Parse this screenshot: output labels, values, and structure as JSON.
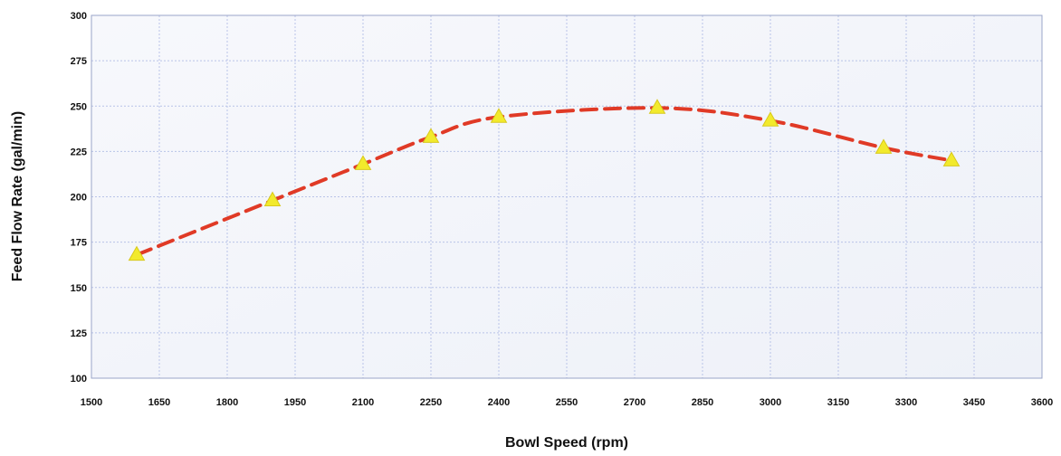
{
  "chart_data": {
    "type": "line",
    "title": "",
    "xlabel": "Bowl Speed (rpm)",
    "ylabel": "Feed Flow Rate (gal/min)",
    "xlim": [
      1500,
      3600
    ],
    "ylim": [
      100,
      300
    ],
    "xticks": [
      1500,
      1650,
      1800,
      1950,
      2100,
      2250,
      2400,
      2550,
      2700,
      2850,
      3000,
      3150,
      3300,
      3450,
      3600
    ],
    "yticks": [
      100,
      125,
      150,
      175,
      200,
      225,
      250,
      275,
      300
    ],
    "grid": true,
    "legend": "none",
    "series": [
      {
        "x": [
          1600,
          1900,
          2100,
          2250,
          2400,
          2750,
          3000,
          3250,
          3400
        ],
        "y": [
          168,
          198,
          218,
          233,
          244,
          249,
          242,
          227,
          220
        ],
        "line_style": "dashed",
        "line_color": "#e03a26",
        "marker": "triangle",
        "marker_color": "#f2ea2c"
      }
    ],
    "plot_background": "#f3f5fa",
    "grid_color": "#b9c3e8"
  }
}
